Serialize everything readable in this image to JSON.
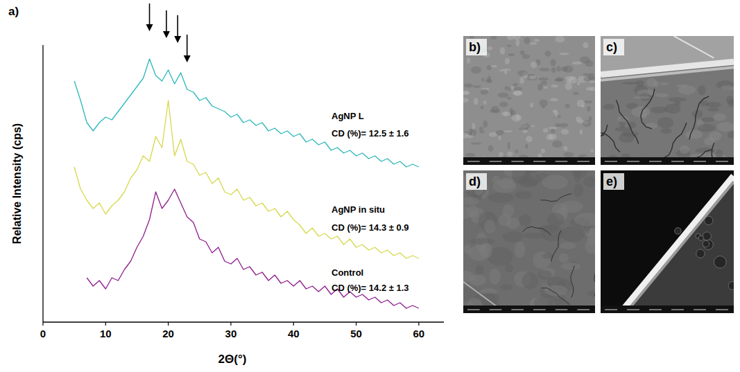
{
  "chart_data": {
    "type": "line",
    "panel_label": "a)",
    "x_label": "2Θ(°)",
    "y_label": "Relative Intensity (cps)",
    "xlim": [
      0,
      64
    ],
    "xticks": [
      0,
      10,
      20,
      30,
      40,
      50,
      60
    ],
    "ylim": [
      0,
      100
    ],
    "yticks": [],
    "tick_labels": "x",
    "grid": false,
    "peak_arrows": [
      17,
      19.7,
      21.5,
      23
    ],
    "series": [
      {
        "name": "AgNP L",
        "annotation": "CD (%)= 12.5 ± 1.6",
        "color": "#2bb7b9",
        "x": [
          5,
          6,
          7,
          8,
          9,
          10,
          11,
          12,
          13,
          14,
          15,
          16,
          17,
          18,
          19,
          20,
          21,
          22,
          23,
          24,
          25,
          26,
          27,
          28,
          29,
          30,
          31,
          32,
          33,
          34,
          35,
          36,
          37,
          38,
          39,
          40,
          41,
          42,
          43,
          44,
          45,
          46,
          47,
          48,
          49,
          50,
          51,
          52,
          53,
          54,
          55,
          56,
          57,
          58,
          59,
          60
        ],
        "values": [
          87,
          80,
          72,
          69,
          72,
          74,
          73,
          76,
          79,
          82,
          85,
          88,
          95,
          89,
          87,
          91,
          86,
          90,
          84,
          83,
          80,
          81,
          78,
          77,
          76,
          74,
          75,
          72,
          73,
          71,
          72,
          69,
          70,
          68,
          69,
          67,
          68,
          65,
          66,
          64,
          65,
          62,
          63,
          61,
          62,
          60,
          61,
          59,
          60,
          58,
          59,
          57,
          58,
          56,
          57,
          56
        ]
      },
      {
        "name": "AgNP in situ",
        "annotation": "CD (%)= 14.3 ± 0.9",
        "color": "#d6d84a",
        "x": [
          5,
          6,
          7,
          8,
          9,
          10,
          11,
          12,
          13,
          14,
          15,
          16,
          17,
          18,
          19,
          20,
          21,
          22,
          23,
          24,
          25,
          26,
          27,
          28,
          29,
          30,
          31,
          32,
          33,
          34,
          35,
          36,
          37,
          38,
          39,
          40,
          41,
          42,
          43,
          44,
          45,
          46,
          47,
          48,
          49,
          50,
          51,
          52,
          53,
          54,
          55,
          56,
          57,
          58,
          59,
          60
        ],
        "values": [
          56,
          48,
          44,
          41,
          43,
          39,
          42,
          44,
          47,
          52,
          55,
          60,
          58,
          67,
          63,
          80,
          60,
          66,
          58,
          57,
          53,
          54,
          50,
          52,
          47,
          46,
          48,
          44,
          45,
          42,
          43,
          40,
          41,
          38,
          40,
          37,
          35,
          32,
          34,
          31,
          32,
          30,
          31,
          28,
          30,
          27,
          28,
          26,
          27,
          25,
          26,
          24,
          25,
          23,
          24,
          23
        ]
      },
      {
        "name": "Control",
        "annotation": "CD (%)= 14.2 ± 1.3",
        "color": "#8e1b8c",
        "x": [
          7,
          8,
          9,
          10,
          11,
          12,
          13,
          14,
          15,
          16,
          17,
          18,
          19,
          20,
          21,
          22,
          23,
          24,
          25,
          26,
          27,
          28,
          29,
          30,
          31,
          32,
          33,
          34,
          35,
          36,
          37,
          38,
          39,
          40,
          41,
          42,
          43,
          44,
          45,
          46,
          47,
          48,
          49,
          50,
          51,
          52,
          53,
          54,
          55,
          56,
          57,
          58,
          59,
          60
        ],
        "values": [
          16,
          13,
          15,
          12,
          16,
          15,
          19,
          22,
          27,
          31,
          37,
          47,
          41,
          44,
          48,
          43,
          38,
          36,
          30,
          29,
          25,
          27,
          22,
          21,
          23,
          19,
          20,
          17,
          18,
          15,
          17,
          14,
          15,
          13,
          15,
          12,
          13,
          11,
          13,
          10,
          12,
          9,
          11,
          9,
          10,
          8,
          9,
          7,
          8,
          6,
          7,
          5,
          6,
          5
        ]
      }
    ]
  },
  "micrographs": [
    {
      "label": "b)"
    },
    {
      "label": "c)"
    },
    {
      "label": "d)"
    },
    {
      "label": "e)"
    }
  ]
}
